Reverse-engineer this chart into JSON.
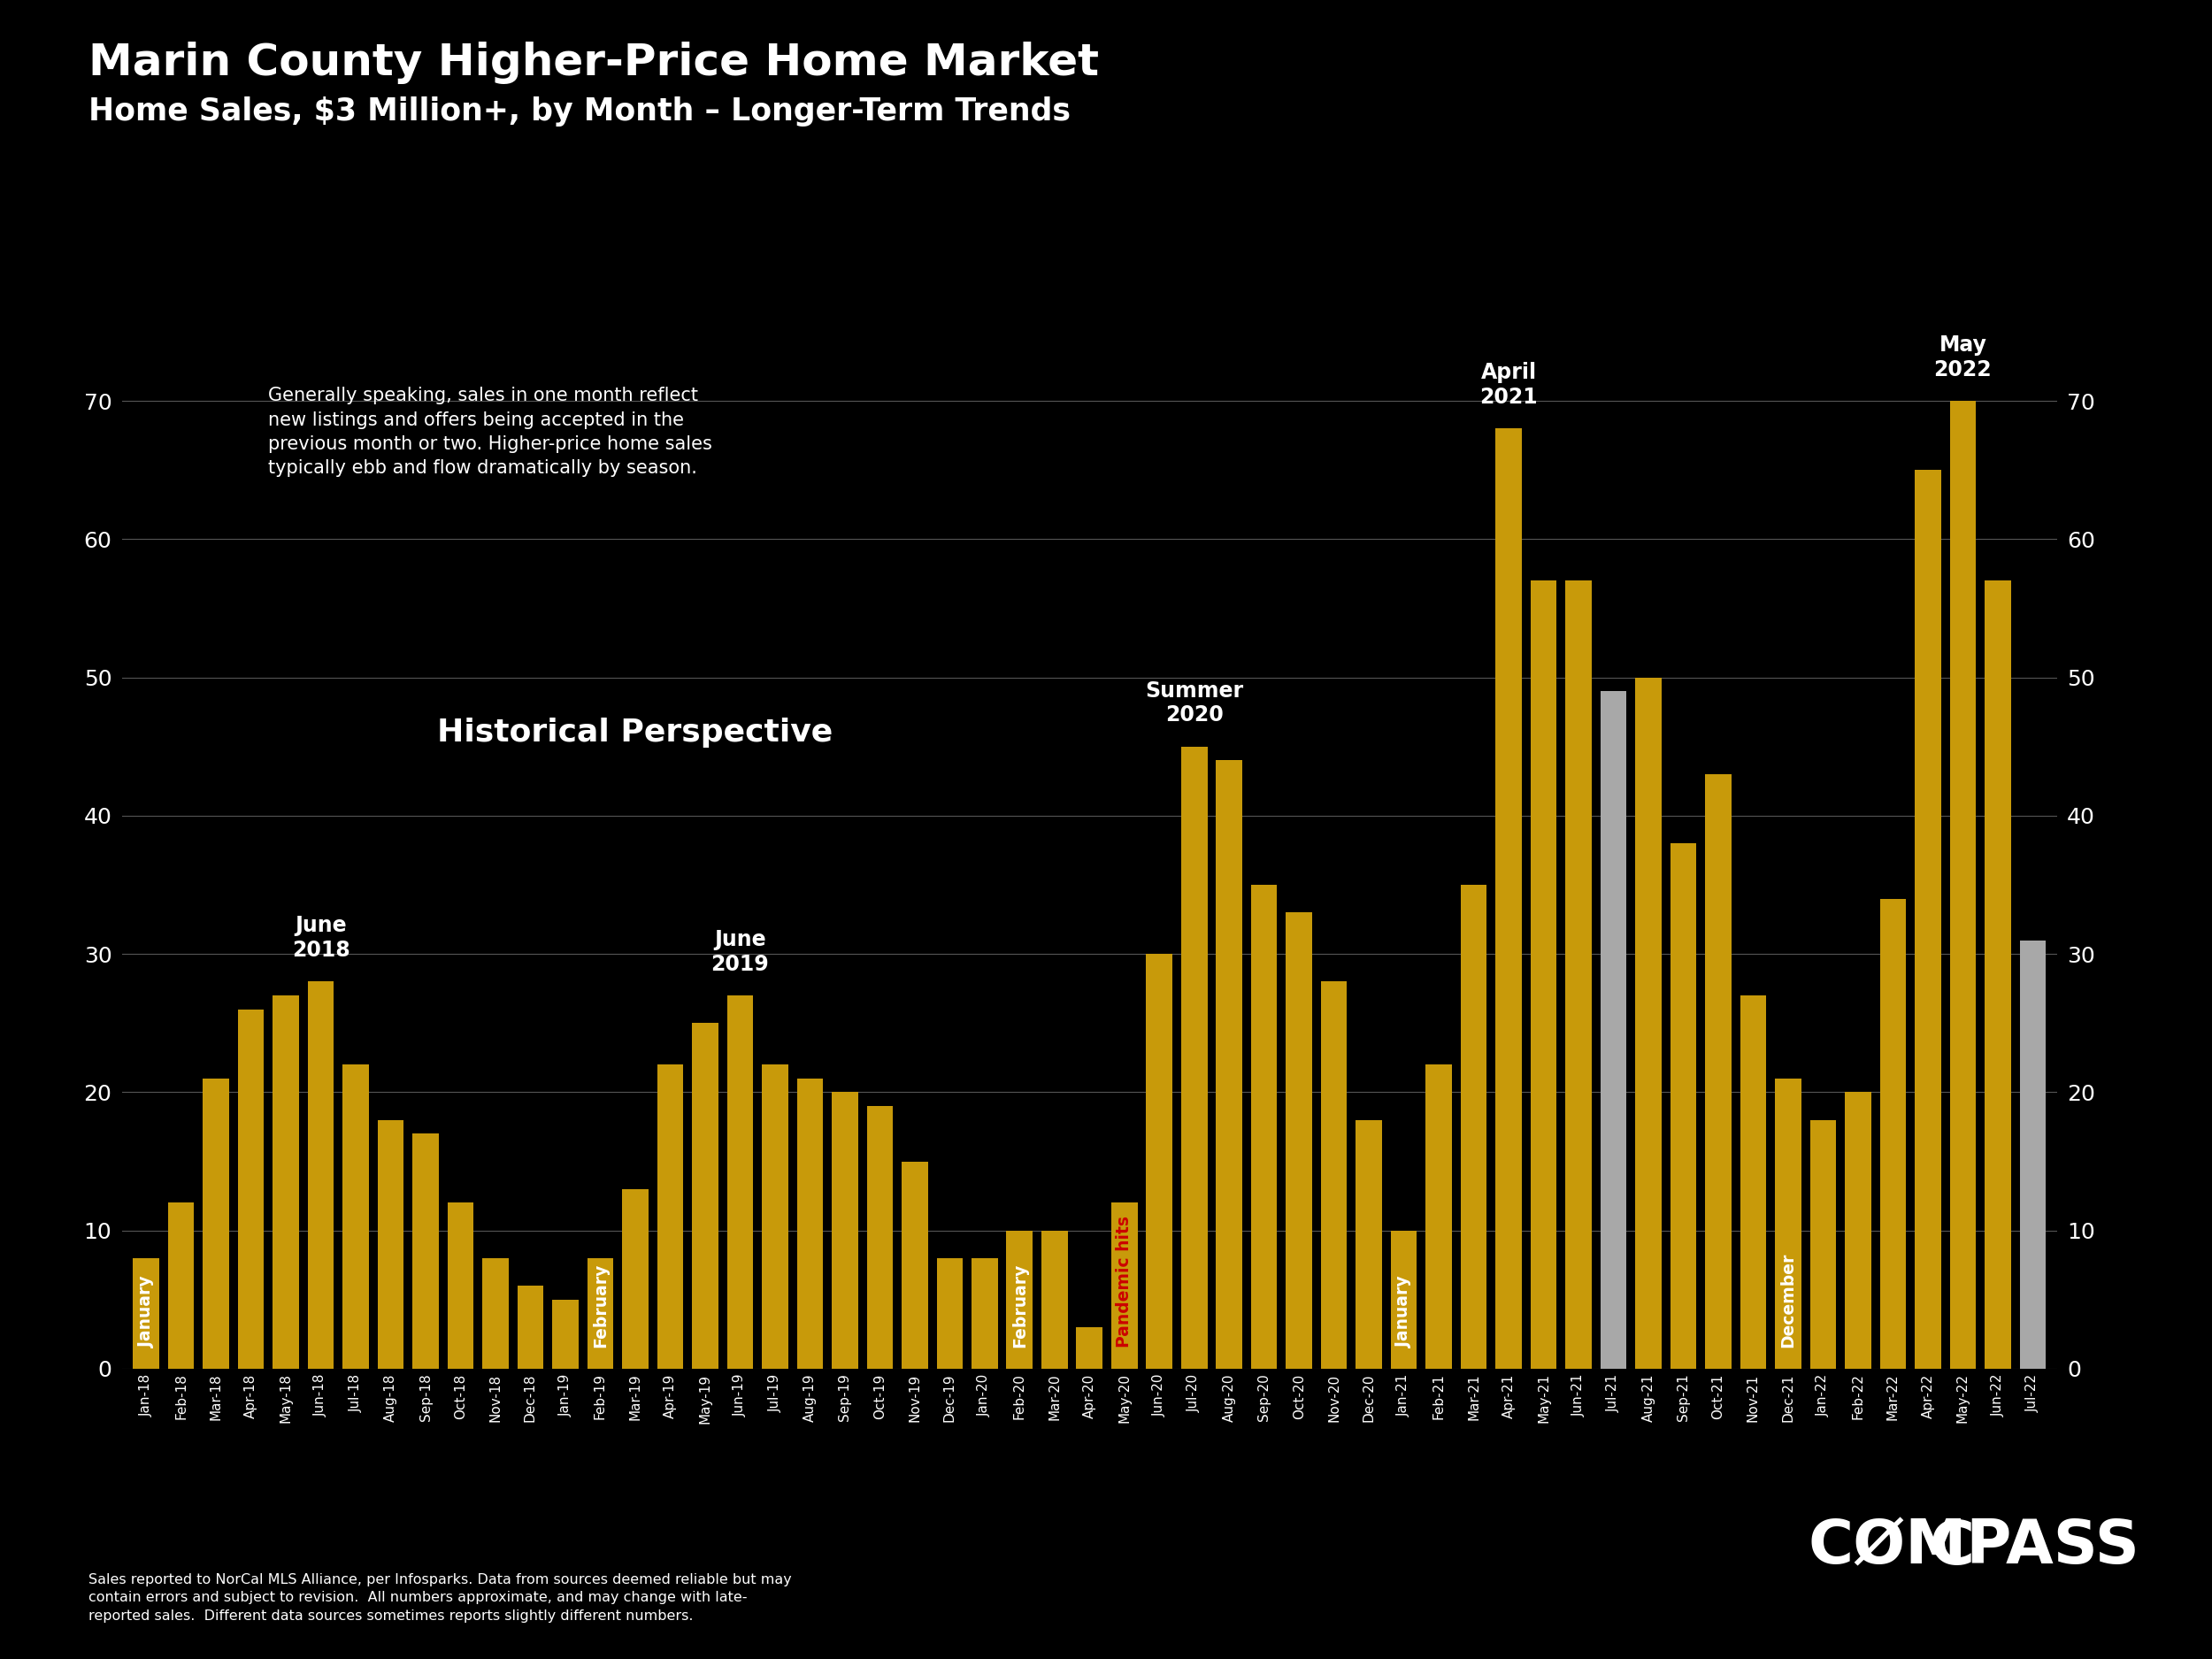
{
  "title1": "Marin County Higher-Price Home Market",
  "title2": "Home Sales, $3 Million+, by Month – Longer-Term Trends",
  "bg": "#000000",
  "gold": "#C89A0A",
  "gray": "#A8A8A8",
  "red_label": "#CC0000",
  "categories": [
    "Jan-18",
    "Feb-18",
    "Mar-18",
    "Apr-18",
    "May-18",
    "Jun-18",
    "Jul-18",
    "Aug-18",
    "Sep-18",
    "Oct-18",
    "Nov-18",
    "Dec-18",
    "Jan-19",
    "Feb-19",
    "Mar-19",
    "Apr-19",
    "May-19",
    "Jun-19",
    "Jul-19",
    "Aug-19",
    "Sep-19",
    "Oct-19",
    "Nov-19",
    "Dec-19",
    "Jan-20",
    "Feb-20",
    "Mar-20",
    "Apr-20",
    "May-20",
    "Jun-20",
    "Jul-20",
    "Aug-20",
    "Sep-20",
    "Oct-20",
    "Nov-20",
    "Dec-20",
    "Jan-21",
    "Feb-21",
    "Mar-21",
    "Apr-21",
    "May-21",
    "Jun-21",
    "Jul-21",
    "Aug-21",
    "Sep-21",
    "Oct-21",
    "Nov-21",
    "Dec-21",
    "Jan-22",
    "Feb-22",
    "Mar-22",
    "Apr-22",
    "May-22",
    "Jun-22",
    "Jul-22"
  ],
  "values": [
    8,
    12,
    21,
    26,
    27,
    28,
    22,
    18,
    17,
    12,
    8,
    6,
    5,
    8,
    13,
    22,
    25,
    27,
    22,
    21,
    20,
    19,
    15,
    8,
    8,
    10,
    10,
    3,
    12,
    30,
    45,
    44,
    35,
    33,
    28,
    18,
    10,
    22,
    35,
    68,
    57,
    57,
    49,
    50,
    38,
    43,
    27,
    21,
    18,
    20,
    34,
    65,
    70,
    57,
    31
  ],
  "gray_indices": [
    42,
    54
  ],
  "annotation_peaks": [
    {
      "text": "June\n2018",
      "index": 5
    },
    {
      "text": "June\n2019",
      "index": 17
    },
    {
      "text": "Summer\n2020",
      "index": 30
    },
    {
      "text": "April\n2021",
      "index": 39
    },
    {
      "text": "May\n2022",
      "index": 52
    }
  ],
  "rotated_bar_labels": [
    {
      "text": "January",
      "index": 0,
      "color": "white"
    },
    {
      "text": "February",
      "index": 13,
      "color": "white"
    },
    {
      "text": "February",
      "index": 25,
      "color": "white"
    },
    {
      "text": "Pandemic hits",
      "index": 28,
      "color": "#CC0000"
    },
    {
      "text": "January",
      "index": 36,
      "color": "white"
    },
    {
      "text": "December",
      "index": 47,
      "color": "white"
    }
  ],
  "infobox": "Generally speaking, sales in one month reflect\nnew listings and offers being accepted in the\nprevious month or two. Higher-price home sales\ntypically ebb and flow dramatically by season.",
  "historical": "Historical Perspective",
  "ylim": [
    0,
    75
  ],
  "yticks": [
    0,
    10,
    20,
    30,
    40,
    50,
    60,
    70
  ],
  "footer": "Sales reported to NorCal MLS Alliance, per Infosparks. Data from sources deemed reliable but may\ncontain errors and subject to revision.  All numbers approximate, and may change with late-\nreported sales.  Different data sources sometimes reports slightly different numbers."
}
